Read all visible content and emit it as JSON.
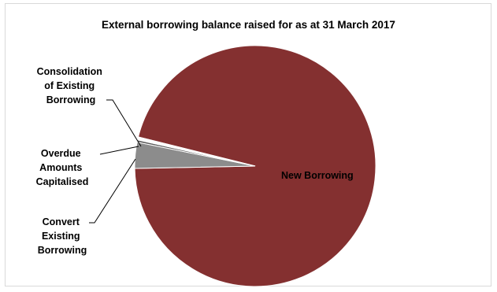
{
  "chart_data": {
    "type": "pie",
    "title": "External borrowing balance raised for as at 31 March 2017",
    "slices": [
      {
        "name": "New Borrowing",
        "value": 95.8,
        "color": "#843030"
      },
      {
        "name": "Convert Existing Borrowing",
        "value": 3.5,
        "color": "#8c8c8c"
      },
      {
        "name": "Overdue Amounts Capitalised",
        "value": 0.3,
        "color": "#5a5a5a"
      },
      {
        "name": "Consolidation of Existing Borrowing",
        "value": 0.4,
        "color": "#ffffff"
      }
    ],
    "labels": {
      "new_borrowing": "New Borrowing",
      "consolidation": [
        "Consolidation",
        "of Existing",
        "Borrowing"
      ],
      "overdue": [
        "Overdue",
        "Amounts",
        "Capitalised"
      ],
      "convert": [
        "Convert",
        "Existing",
        "Borrowing"
      ]
    }
  }
}
